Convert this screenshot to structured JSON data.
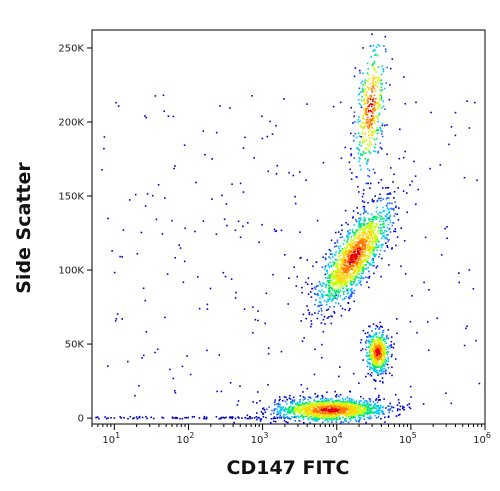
{
  "chart_data": {
    "type": "scatter",
    "title": "",
    "xlabel": "CD147 FITC",
    "ylabel": "Side Scatter",
    "x_scale": "log",
    "xlim": [
      5,
      1000000
    ],
    "ylim": [
      -4000,
      262144
    ],
    "grid": false,
    "x_ticks": [
      {
        "value": 10,
        "base": "10",
        "exp": "1"
      },
      {
        "value": 100,
        "base": "10",
        "exp": "2"
      },
      {
        "value": 1000,
        "base": "10",
        "exp": "3"
      },
      {
        "value": 10000,
        "base": "10",
        "exp": "4"
      },
      {
        "value": 100000,
        "base": "10",
        "exp": "5"
      },
      {
        "value": 1000000,
        "base": "10",
        "exp": "6"
      }
    ],
    "y_ticks": [
      {
        "value": 0,
        "label": "0"
      },
      {
        "value": 50000,
        "label": "50K"
      },
      {
        "value": 100000,
        "label": "100K"
      },
      {
        "value": 150000,
        "label": "150K"
      },
      {
        "value": 200000,
        "label": "200K"
      },
      {
        "value": 250000,
        "label": "250K"
      }
    ],
    "color_scale": [
      "#0000cc",
      "#1e64ff",
      "#00c8ff",
      "#00e676",
      "#c8ff00",
      "#ffd200",
      "#ff7800",
      "#e60000"
    ],
    "populations": [
      {
        "x_center": 17000,
        "y_center": 110000,
        "count": 1400
      },
      {
        "x_center": 8000,
        "y_center": 6000,
        "count": 1300
      },
      {
        "x_center": 35000,
        "y_center": 45000,
        "count": 500
      },
      {
        "x_center": 28000,
        "y_center": 210000,
        "count": 400
      }
    ]
  }
}
